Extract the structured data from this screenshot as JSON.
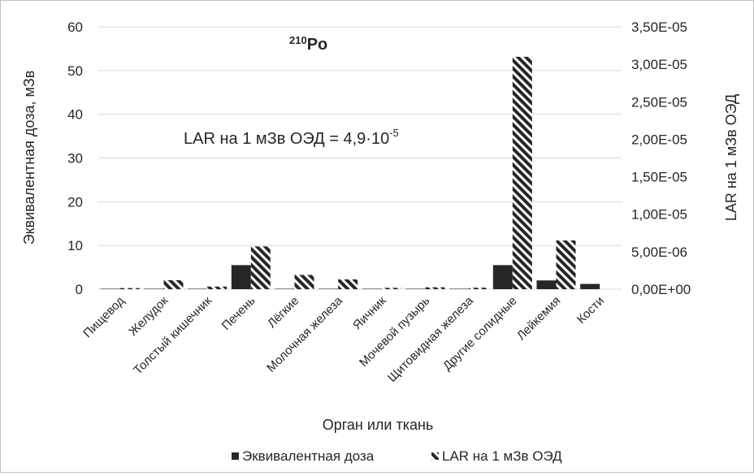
{
  "chart_data": {
    "type": "bar",
    "title_iso_mass": "210",
    "title_element": "Po",
    "annotation_main": "LAR на 1 мЗв ОЭД = 4,9·10",
    "annotation_exp": "-5",
    "xlabel": "Орган или ткань",
    "ylabel_left": "Эквивалентная доза, мЗв",
    "ylabel_right": "LAR на 1 мЗв ОЭД",
    "categories": [
      "Пищевод",
      "Желудок",
      "Толстый кишечник",
      "Печень",
      "Лёгкие",
      "Молочная железа",
      "Яичник",
      "Мочевой пузырь",
      "Щитовидная железа",
      "Другие солидные",
      "Лейкемия",
      "Кости"
    ],
    "left_ticks": [
      "0",
      "10",
      "20",
      "30",
      "40",
      "50",
      "60"
    ],
    "right_ticks": [
      "0,00E+00",
      "5,00E-06",
      "1,00E-05",
      "1,50E-05",
      "2,00E-05",
      "2,50E-05",
      "3,00E-05",
      "3,50E-05"
    ],
    "ylim_left": [
      0,
      60
    ],
    "ylim_right": [
      0,
      3.5e-05
    ],
    "grid": true,
    "legend_position": "bottom",
    "series": [
      {
        "name": "Эквивалентная доза",
        "axis": "left",
        "color": "#262626",
        "pattern": "solid",
        "values": [
          0.1,
          0.1,
          0.1,
          5.5,
          0.1,
          0.1,
          0.1,
          0.1,
          0.1,
          5.5,
          2.0,
          1.2
        ]
      },
      {
        "name": "LAR на 1 мЗв ОЭД",
        "axis": "right",
        "color": "#262626",
        "pattern": "diagonal-stripes",
        "values": [
          1.5e-07,
          1.2e-06,
          3.5e-07,
          5.7e-06,
          1.9e-06,
          1.3e-06,
          1.8e-07,
          2.5e-07,
          2e-07,
          3.1e-05,
          6.5e-06,
          0
        ]
      }
    ]
  }
}
